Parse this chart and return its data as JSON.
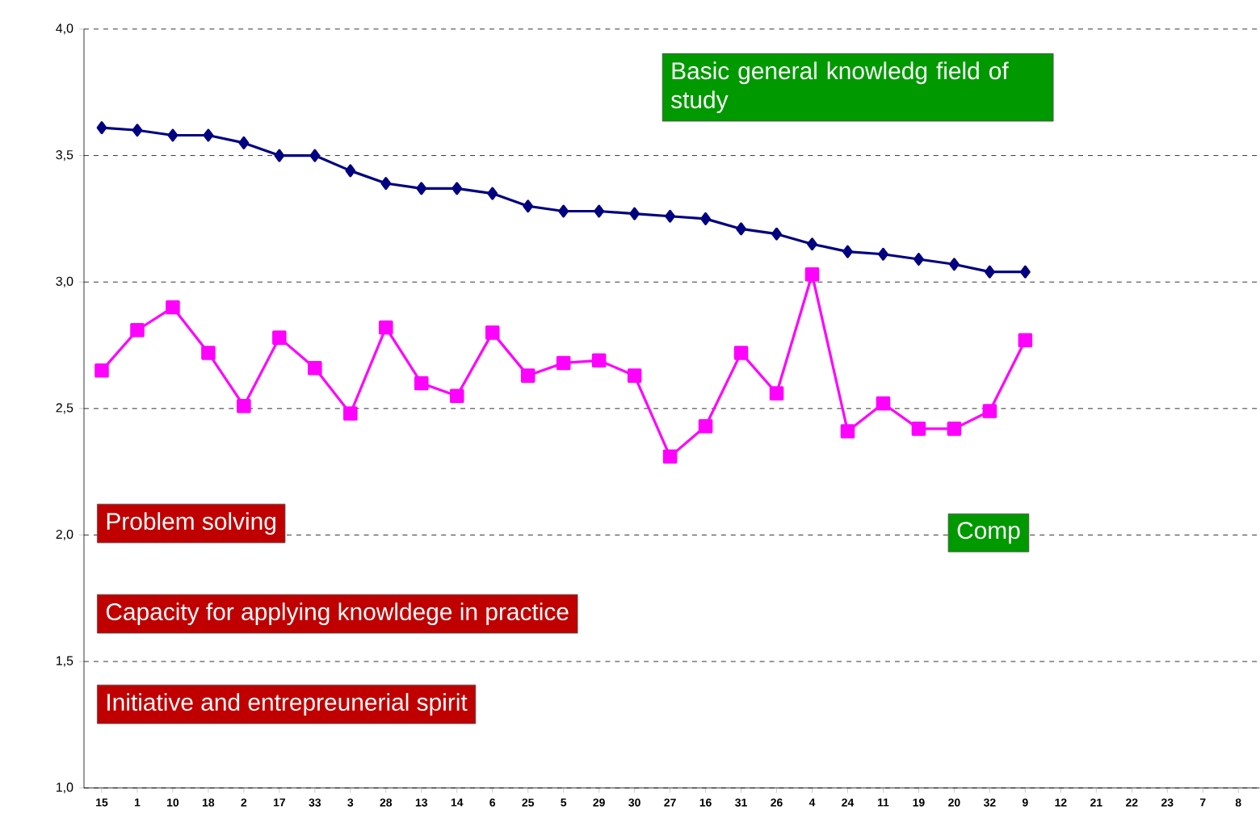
{
  "chart_data": {
    "type": "line",
    "categories": [
      "15",
      "1",
      "10",
      "18",
      "2",
      "17",
      "33",
      "3",
      "28",
      "13",
      "14",
      "6",
      "25",
      "5",
      "29",
      "30",
      "27",
      "16",
      "31",
      "26",
      "4",
      "24",
      "11",
      "19",
      "20",
      "32",
      "9",
      "12",
      "21",
      "22",
      "23",
      "7",
      "8"
    ],
    "series": [
      {
        "color": "#000080",
        "marker": "diamond",
        "values": [
          3.61,
          3.6,
          3.58,
          3.58,
          3.55,
          3.5,
          3.5,
          3.44,
          3.39,
          3.37,
          3.37,
          3.35,
          3.3,
          3.28,
          3.28,
          3.27,
          3.26,
          3.25,
          3.21,
          3.19,
          3.15,
          3.12,
          3.11,
          3.09,
          3.07,
          3.04,
          3.04,
          null,
          null,
          null,
          null,
          null,
          null
        ]
      },
      {
        "color": "#ff00ff",
        "marker": "square",
        "values": [
          2.65,
          2.81,
          2.9,
          2.72,
          2.51,
          2.78,
          2.66,
          2.48,
          2.82,
          2.6,
          2.55,
          2.8,
          2.63,
          2.68,
          2.69,
          2.63,
          2.31,
          2.43,
          2.72,
          2.56,
          3.03,
          2.41,
          2.52,
          2.42,
          2.42,
          2.49,
          2.77,
          null,
          null,
          null,
          null,
          null,
          null
        ]
      }
    ],
    "ylim": [
      1.0,
      4.0
    ],
    "yticks": [
      {
        "value": 1.0,
        "label": "1,0"
      },
      {
        "value": 1.5,
        "label": "1,5"
      },
      {
        "value": 2.0,
        "label": "2,0"
      },
      {
        "value": 2.5,
        "label": "2,5"
      },
      {
        "value": 3.0,
        "label": "3,0"
      },
      {
        "value": 3.5,
        "label": "3,5"
      },
      {
        "value": 4.0,
        "label": "4,0"
      }
    ],
    "grid": "y",
    "line_style": "solid",
    "annotations": [
      "Basic general knowledg field of study",
      "Comp",
      "Problem solving",
      "Capacity for applying knowldege in practice",
      "Initiative and entrepreunerial spirit"
    ]
  }
}
